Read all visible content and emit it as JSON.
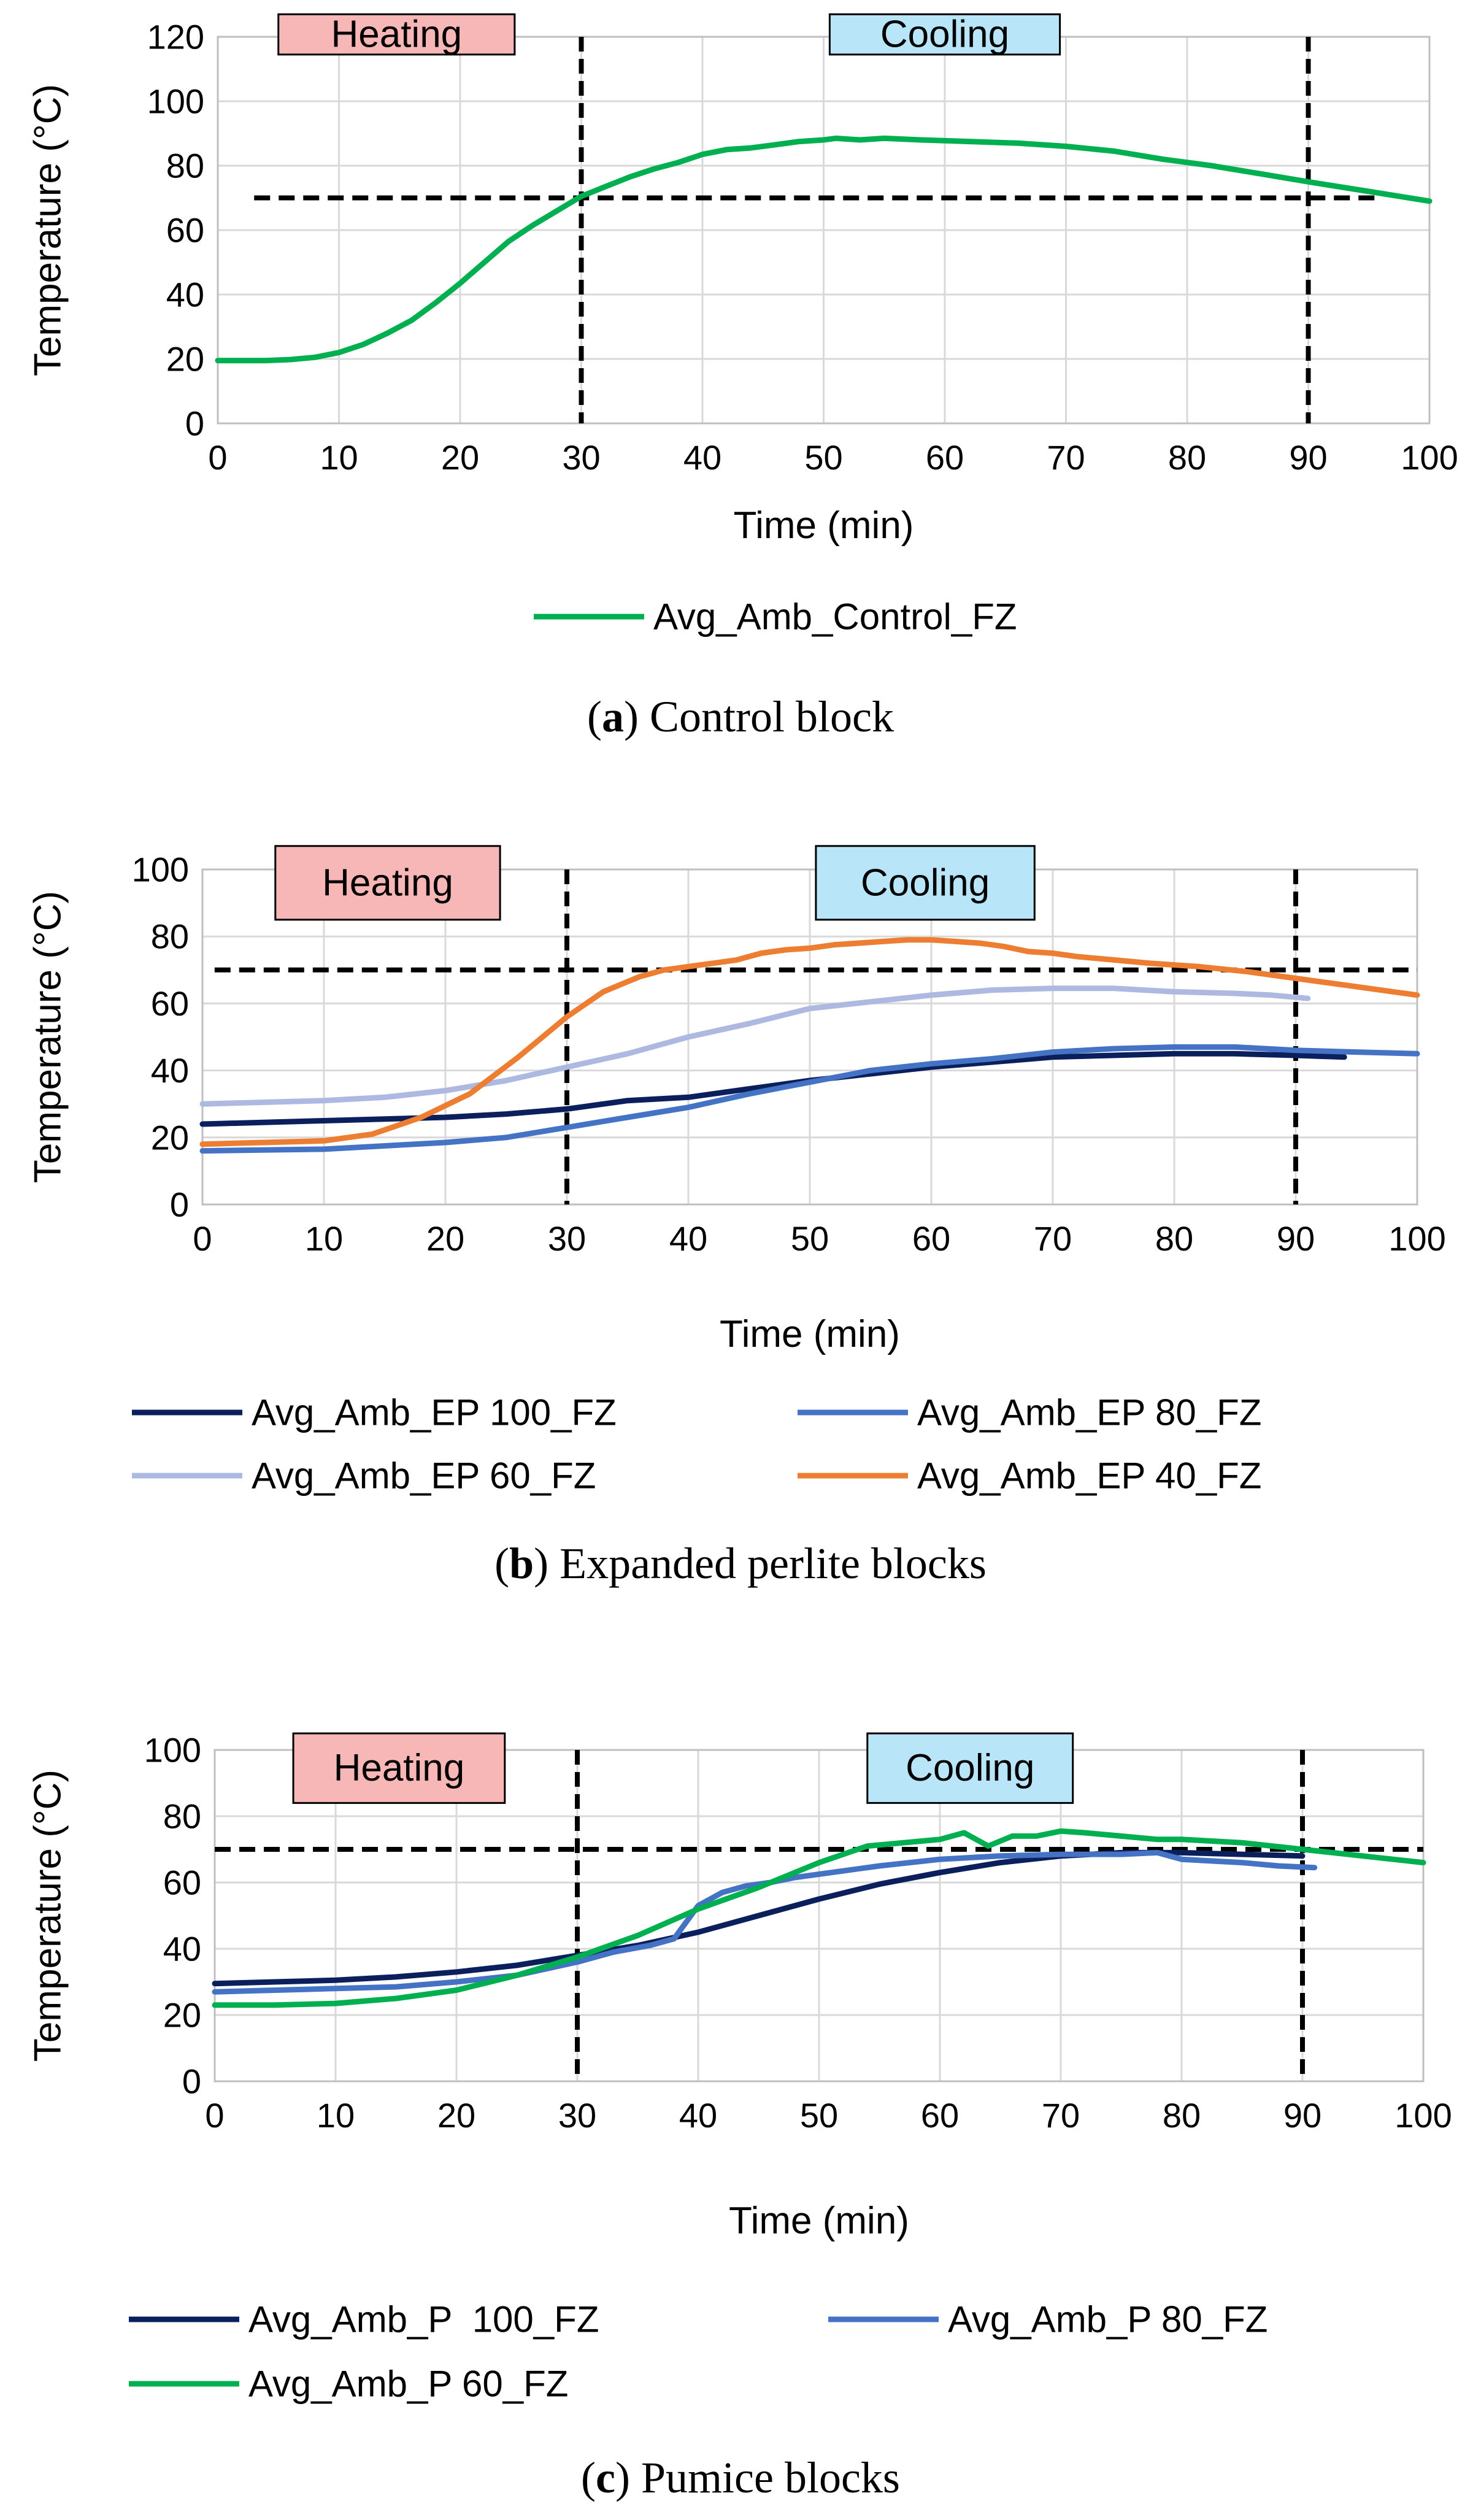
{
  "chart_data": [
    {
      "id": "a",
      "type": "line",
      "caption_letter": "a",
      "caption_open": "(",
      "caption_close": ")",
      "caption_rest": " Control block",
      "xlabel": "Time (min)",
      "ylabel": "Temperature (°C)",
      "xlim": [
        0,
        100
      ],
      "ylim": [
        0,
        120
      ],
      "xticks": [
        "0",
        "10",
        "20",
        "30",
        "40",
        "50",
        "60",
        "70",
        "80",
        "90",
        "100"
      ],
      "yticks": [
        "0",
        "20",
        "40",
        "60",
        "80",
        "100",
        "120"
      ],
      "grid": true,
      "phase_labels": {
        "heating": "Heating",
        "cooling": "Cooling"
      },
      "phase_boxes_x": {
        "heating": [
          5,
          24.5
        ],
        "cooling": [
          50.5,
          69.5
        ]
      },
      "phase_boxes_y": [
        114.5,
        127
      ],
      "vlines": [
        30,
        90
      ],
      "threshold": {
        "value": 70,
        "x_range": [
          3,
          95.5
        ]
      },
      "colors": {
        "heating_fill": "#f7b7b7",
        "cooling_fill": "#b8e5f7",
        "grid": "#d9d9d9"
      },
      "legend": {
        "placement": "bottom-center",
        "columns": 1
      },
      "series": [
        {
          "name": "Avg_Amb_Control_FZ",
          "color": "#00b050",
          "x": [
            0,
            4,
            6,
            8,
            10,
            12,
            14,
            16,
            18,
            20,
            22,
            24,
            26,
            28,
            30,
            32,
            34,
            36,
            38,
            40,
            42,
            44,
            46,
            48,
            50,
            51,
            53,
            55,
            58,
            62,
            66,
            70,
            74,
            78,
            82,
            86,
            90,
            95,
            100
          ],
          "y": [
            19.5,
            19.5,
            19.8,
            20.5,
            22,
            24.5,
            28,
            32,
            37.5,
            43.5,
            50,
            56.5,
            61.5,
            66,
            70.5,
            73.5,
            76.5,
            79,
            81,
            83.5,
            85,
            85.5,
            86.5,
            87.5,
            88,
            88.5,
            88,
            88.5,
            88,
            87.5,
            87,
            86,
            84.5,
            82,
            80,
            77.5,
            75,
            72,
            69
          ]
        }
      ]
    },
    {
      "id": "b",
      "type": "line",
      "caption_letter": "b",
      "caption_open": "(",
      "caption_close": ")",
      "caption_rest": " Expanded perlite blocks",
      "xlabel": "Time (min)",
      "ylabel": "Temperature (°C)",
      "xlim": [
        0,
        100
      ],
      "ylim": [
        0,
        100
      ],
      "xticks": [
        "0",
        "10",
        "20",
        "30",
        "40",
        "50",
        "60",
        "70",
        "80",
        "90",
        "100"
      ],
      "yticks": [
        "0",
        "20",
        "40",
        "60",
        "80",
        "100"
      ],
      "grid": true,
      "phase_labels": {
        "heating": "Heating",
        "cooling": "Cooling"
      },
      "phase_boxes_x": {
        "heating": [
          6,
          24.5
        ],
        "cooling": [
          50.5,
          68.5
        ]
      },
      "phase_boxes_y": [
        85,
        107
      ],
      "vlines": [
        30,
        90
      ],
      "threshold": {
        "value": 70,
        "x_range": [
          1,
          100
        ]
      },
      "colors": {
        "heating_fill": "#f7b7b7",
        "cooling_fill": "#b8e5f7",
        "grid": "#d9d9d9"
      },
      "legend": {
        "placement": "bottom-center",
        "columns": 2
      },
      "series": [
        {
          "name": "Avg_Amb_EP 100_FZ",
          "color": "#0b1f5c",
          "x": [
            0,
            10,
            20,
            25,
            30,
            35,
            40,
            45,
            50,
            55,
            60,
            65,
            70,
            75,
            80,
            85,
            90,
            94
          ],
          "y": [
            24,
            25,
            26,
            27,
            28.5,
            31,
            32,
            34.5,
            37,
            39,
            41,
            42.5,
            44,
            44.5,
            45,
            45,
            44.5,
            44
          ]
        },
        {
          "name": "Avg_Amb_EP 80_FZ",
          "color": "#4472c4",
          "x": [
            0,
            10,
            20,
            25,
            30,
            35,
            40,
            45,
            50,
            55,
            60,
            65,
            70,
            75,
            80,
            85,
            90,
            95,
            100
          ],
          "y": [
            16,
            16.5,
            18.5,
            20,
            23,
            26,
            29,
            33,
            36.5,
            40,
            42,
            43.5,
            45.5,
            46.5,
            47,
            47,
            46,
            45.5,
            45
          ]
        },
        {
          "name": "Avg_Amb_EP 60_FZ",
          "color": "#adb9e0",
          "x": [
            0,
            5,
            10,
            15,
            20,
            25,
            30,
            35,
            40,
            45,
            50,
            55,
            60,
            65,
            70,
            75,
            80,
            85,
            88,
            91
          ],
          "y": [
            30,
            30.5,
            31,
            32,
            34,
            37,
            41,
            45,
            50,
            54,
            58.5,
            60.5,
            62.5,
            64,
            64.5,
            64.5,
            63.5,
            63,
            62.5,
            61.5
          ]
        },
        {
          "name": "Avg_Amb_EP 40_FZ",
          "color": "#ed7d31",
          "x": [
            0,
            5,
            10,
            14,
            18,
            22,
            26,
            30,
            33,
            36,
            38,
            40,
            42,
            44,
            46,
            48,
            50,
            52,
            54,
            56,
            58,
            60,
            62,
            64,
            66,
            68,
            70,
            72,
            75,
            78,
            82,
            86,
            90,
            95,
            100
          ],
          "y": [
            18,
            18.5,
            19,
            21,
            26,
            33,
            44,
            56,
            63.5,
            68,
            70,
            71,
            72,
            73,
            75,
            76,
            76.5,
            77.5,
            78,
            78.5,
            79,
            79,
            78.5,
            78,
            77,
            75.5,
            75,
            74,
            73,
            72,
            71,
            69.5,
            67.5,
            65,
            62.5
          ]
        }
      ]
    },
    {
      "id": "c",
      "type": "line",
      "caption_letter": "c",
      "caption_open": "(",
      "caption_close": ")",
      "caption_rest": " Pumice blocks",
      "xlabel": "Time (min)",
      "ylabel": "Temperature (°C)",
      "xlim": [
        0,
        100
      ],
      "ylim": [
        0,
        100
      ],
      "xticks": [
        "0",
        "10",
        "20",
        "30",
        "40",
        "50",
        "60",
        "70",
        "80",
        "90",
        "100"
      ],
      "yticks": [
        "0",
        "20",
        "40",
        "60",
        "80",
        "100"
      ],
      "grid": true,
      "phase_labels": {
        "heating": "Heating",
        "cooling": "Cooling"
      },
      "phase_boxes_x": {
        "heating": [
          6.5,
          24
        ],
        "cooling": [
          54,
          71
        ]
      },
      "phase_boxes_y": [
        84,
        105
      ],
      "vlines": [
        30,
        90
      ],
      "threshold": {
        "value": 70,
        "x_range": [
          0,
          100
        ]
      },
      "colors": {
        "heating_fill": "#f7b7b7",
        "cooling_fill": "#b8e5f7",
        "grid": "#d9d9d9"
      },
      "legend": {
        "placement": "bottom-center",
        "columns": 2
      },
      "series": [
        {
          "name": "Avg_Amb_P  100_FZ",
          "color": "#0b1f5c",
          "x": [
            0,
            5,
            10,
            15,
            20,
            25,
            30,
            35,
            40,
            45,
            50,
            55,
            60,
            65,
            70,
            75,
            80,
            85,
            90
          ],
          "y": [
            29.5,
            30,
            30.5,
            31.5,
            33,
            35,
            38,
            41,
            45,
            50,
            55,
            59.5,
            63,
            66,
            68,
            69,
            69,
            68.5,
            68
          ]
        },
        {
          "name": "Avg_Amb_P 80_FZ",
          "color": "#4472c4",
          "x": [
            0,
            5,
            10,
            15,
            20,
            25,
            30,
            33,
            36,
            38,
            40,
            42,
            44,
            46,
            48,
            50,
            55,
            60,
            65,
            70,
            75,
            78,
            80,
            85,
            88,
            91
          ],
          "y": [
            27,
            27.5,
            28,
            28.5,
            30,
            32,
            36,
            39,
            41,
            43,
            53,
            57,
            59,
            60,
            61.5,
            62.5,
            65,
            67,
            68,
            68.5,
            68.5,
            69,
            67,
            66,
            65,
            64.5
          ]
        },
        {
          "name": "Avg_Amb_P 60_FZ",
          "color": "#00b050",
          "x": [
            0,
            5,
            10,
            15,
            20,
            25,
            30,
            35,
            40,
            45,
            50,
            54,
            57,
            60,
            62,
            64,
            66,
            68,
            70,
            72,
            75,
            78,
            80,
            85,
            90,
            95,
            100
          ],
          "y": [
            23,
            23,
            23.5,
            25,
            27.5,
            32,
            37.5,
            44,
            52,
            58.5,
            66,
            71,
            72,
            73,
            75,
            71,
            74,
            74,
            75.5,
            75,
            74,
            73,
            73,
            72,
            70,
            68,
            66
          ]
        }
      ]
    }
  ]
}
